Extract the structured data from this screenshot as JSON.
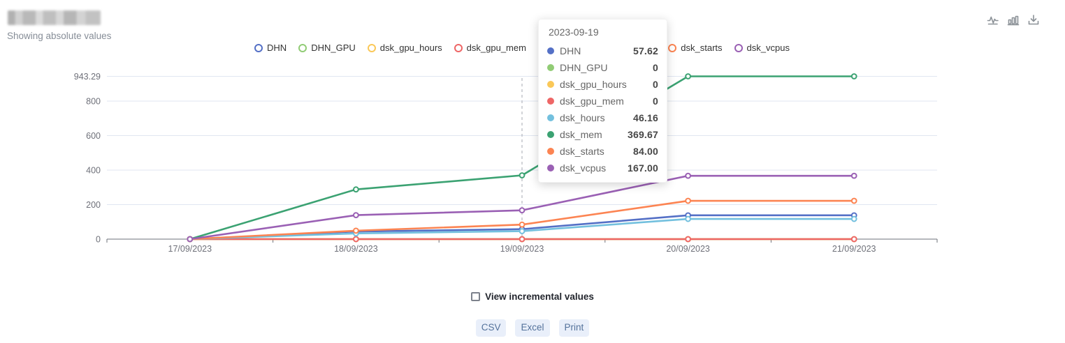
{
  "header": {
    "subtitle": "Showing absolute values"
  },
  "toolbox": {
    "icons": [
      "line-chart-icon",
      "bar-chart-icon",
      "download-icon"
    ]
  },
  "colors": {
    "grid_line": "#E0E6F1",
    "axis": "#6E7079",
    "axis_pointer": "#A6AAB2",
    "button_bg": "#e9effa",
    "button_text": "#54729b"
  },
  "legend": {
    "items": [
      {
        "label": "DHN",
        "color": "#5470c6"
      },
      {
        "label": "DHN_GPU",
        "color": "#91cc75"
      },
      {
        "label": "dsk_gpu_hours",
        "color": "#fac858"
      },
      {
        "label": "dsk_gpu_mem",
        "color": "#ee6666"
      },
      {
        "label": "dsk_hours",
        "color": "#73c0de"
      },
      {
        "label": "dsk_mem",
        "color": "#3ba272"
      },
      {
        "label": "dsk_starts",
        "color": "#fc8452"
      },
      {
        "label": "dsk_vcpus",
        "color": "#9a60b4"
      }
    ]
  },
  "tooltip": {
    "title": "2023-09-19",
    "rows": [
      {
        "label": "DHN",
        "value": "57.62",
        "color": "#5470c6"
      },
      {
        "label": "DHN_GPU",
        "value": "0",
        "color": "#91cc75"
      },
      {
        "label": "dsk_gpu_hours",
        "value": "0",
        "color": "#fac858"
      },
      {
        "label": "dsk_gpu_mem",
        "value": "0",
        "color": "#ee6666"
      },
      {
        "label": "dsk_hours",
        "value": "46.16",
        "color": "#73c0de"
      },
      {
        "label": "dsk_mem",
        "value": "369.67",
        "color": "#3ba272"
      },
      {
        "label": "dsk_starts",
        "value": "84.00",
        "color": "#fc8452"
      },
      {
        "label": "dsk_vcpus",
        "value": "167.00",
        "color": "#9a60b4"
      }
    ]
  },
  "chart_data": {
    "type": "line",
    "categories": [
      "17/09/2023",
      "18/09/2023",
      "19/09/2023",
      "20/09/2023",
      "21/09/2023"
    ],
    "series": [
      {
        "name": "DHN",
        "color": "#5470c6",
        "values": [
          0,
          44,
          57.62,
          138,
          138
        ]
      },
      {
        "name": "DHN_GPU",
        "color": "#91cc75",
        "values": [
          0,
          0,
          0,
          0,
          0
        ]
      },
      {
        "name": "dsk_gpu_hours",
        "color": "#fac858",
        "values": [
          0,
          0,
          0,
          0,
          0
        ]
      },
      {
        "name": "dsk_gpu_mem",
        "color": "#ee6666",
        "values": [
          0,
          0,
          0,
          0,
          0
        ]
      },
      {
        "name": "dsk_hours",
        "color": "#73c0de",
        "values": [
          0,
          33,
          46.16,
          117,
          117
        ]
      },
      {
        "name": "dsk_mem",
        "color": "#3ba272",
        "values": [
          0,
          288,
          369.67,
          943.29,
          943.29
        ]
      },
      {
        "name": "dsk_starts",
        "color": "#fc8452",
        "values": [
          0,
          49,
          84,
          222,
          222
        ]
      },
      {
        "name": "dsk_vcpus",
        "color": "#9a60b4",
        "values": [
          0,
          139,
          167,
          367,
          367
        ]
      }
    ],
    "title": "",
    "xlabel": "",
    "ylabel": "",
    "ylim": [
      0,
      943.29
    ],
    "y_ticks": [
      {
        "value": 0,
        "label": "0"
      },
      {
        "value": 200,
        "label": "200"
      },
      {
        "value": 400,
        "label": "400"
      },
      {
        "value": 600,
        "label": "600"
      },
      {
        "value": 800,
        "label": "800"
      },
      {
        "value": 943.29,
        "label": "943.29"
      }
    ],
    "axis_pointer_index": 2,
    "grid": true,
    "legend_position": "top"
  },
  "controls": {
    "incremental_checkbox_label": "View incremental values",
    "incremental_checked": false
  },
  "export_buttons": [
    "CSV",
    "Excel",
    "Print"
  ]
}
